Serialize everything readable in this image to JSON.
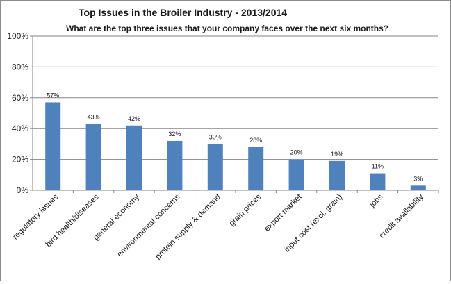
{
  "chart_data": {
    "type": "bar",
    "title": "Top Issues in the Broiler Industry - 2013/2014",
    "subtitle": "What are the top three issues that your company faces  over the next six months?",
    "categories": [
      "regulatory issues",
      "bird health/diseases",
      "general economy",
      "environmental concerns",
      "protein supply & demand",
      "grain prices",
      "export market",
      "input cost (excl. grain)",
      "jobs",
      "credit availability"
    ],
    "values": [
      57,
      43,
      42,
      32,
      30,
      28,
      20,
      19,
      11,
      3
    ],
    "data_labels": [
      "57%",
      "43%",
      "42%",
      "32%",
      "30%",
      "28%",
      "20%",
      "19%",
      "11%",
      "3%"
    ],
    "ylim": [
      0,
      100
    ],
    "yticks": [
      0,
      20,
      40,
      60,
      80,
      100
    ],
    "ytick_labels": [
      "0%",
      "20%",
      "40%",
      "60%",
      "80%",
      "100%"
    ],
    "grid": true,
    "legend": "none",
    "bar_color": "#4f81bd",
    "grid_color": "#868686"
  }
}
